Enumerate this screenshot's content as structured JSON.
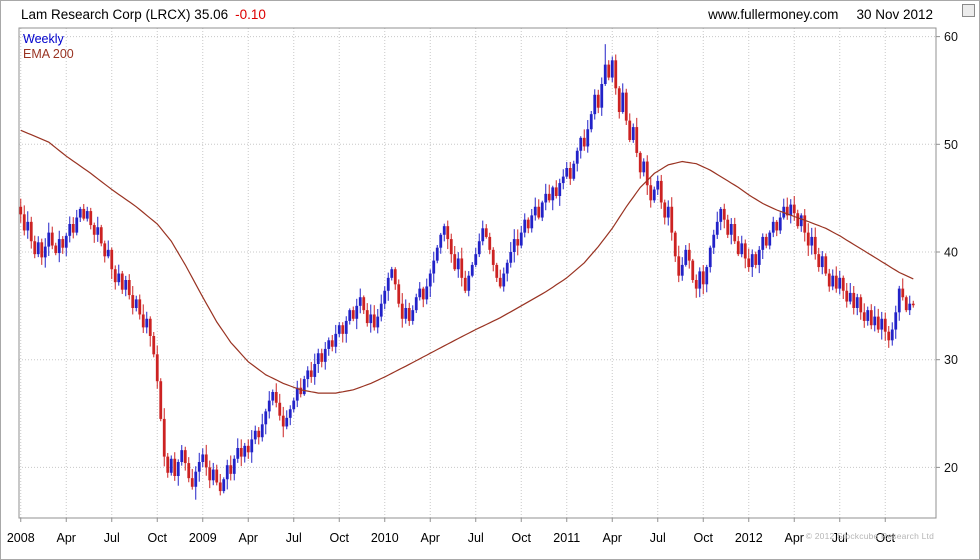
{
  "header": {
    "title": "Lam Research Corp (LRCX) 35.06",
    "change": "-0.10",
    "site": "www.fullermoney.com",
    "date": "30 Nov 2012"
  },
  "legend": {
    "series": "Weekly",
    "overlay": "EMA 200"
  },
  "footer": {
    "copyright": "© 2012 Stockcube Research Ltd"
  },
  "colors": {
    "up": "#2222c8",
    "down": "#cc2222",
    "ema": "#993322",
    "grid": "#c8c8c8",
    "frame": "#909090",
    "tick_text": "#111111",
    "change": "#dd0000",
    "legend_series": "#0000cc",
    "legend_ema": "#993322",
    "copyright": "#b5b5b5"
  },
  "chart_data": {
    "type": "candlestick",
    "period": "weekly",
    "title": "Lam Research Corp (LRCX) 35.06 -0.10",
    "xlabel": "",
    "ylabel": "",
    "grid": true,
    "legend_position": "top-left",
    "legend_entries": [
      "Weekly",
      "EMA 200"
    ],
    "ylim": [
      15.3,
      60.8
    ],
    "yticks": [
      20,
      30,
      40,
      50,
      60
    ],
    "xlim_weeks": [
      0,
      262
    ],
    "x_labels": [
      {
        "week": 0,
        "label": "2008",
        "year": true
      },
      {
        "week": 13,
        "label": "Apr",
        "year": false
      },
      {
        "week": 26,
        "label": "Jul",
        "year": false
      },
      {
        "week": 39,
        "label": "Oct",
        "year": false
      },
      {
        "week": 52,
        "label": "2009",
        "year": true
      },
      {
        "week": 65,
        "label": "Apr",
        "year": false
      },
      {
        "week": 78,
        "label": "Jul",
        "year": false
      },
      {
        "week": 91,
        "label": "Oct",
        "year": false
      },
      {
        "week": 104,
        "label": "2010",
        "year": true
      },
      {
        "week": 117,
        "label": "Apr",
        "year": false
      },
      {
        "week": 130,
        "label": "Jul",
        "year": false
      },
      {
        "week": 143,
        "label": "Oct",
        "year": false
      },
      {
        "week": 156,
        "label": "2011",
        "year": true
      },
      {
        "week": 169,
        "label": "Apr",
        "year": false
      },
      {
        "week": 182,
        "label": "Jul",
        "year": false
      },
      {
        "week": 195,
        "label": "Oct",
        "year": false
      },
      {
        "week": 208,
        "label": "2012",
        "year": true
      },
      {
        "week": 221,
        "label": "Apr",
        "year": false
      },
      {
        "week": 234,
        "label": "Jul",
        "year": false
      },
      {
        "week": 247,
        "label": "Oct",
        "year": false
      }
    ],
    "first_open": 44.2,
    "closes": [
      43.5,
      42.0,
      42.8,
      41.0,
      39.8,
      40.9,
      39.5,
      40.5,
      41.8,
      40.6,
      39.9,
      41.2,
      40.4,
      41.5,
      42.6,
      41.8,
      43.2,
      44.0,
      43.1,
      43.8,
      42.5,
      41.6,
      42.3,
      40.8,
      39.6,
      40.2,
      38.4,
      37.2,
      38.0,
      36.5,
      37.4,
      36.0,
      34.8,
      35.6,
      34.2,
      33.0,
      33.8,
      32.2,
      30.5,
      28.0,
      24.5,
      21.0,
      19.5,
      20.8,
      19.2,
      20.5,
      21.6,
      20.4,
      19.0,
      18.2,
      19.6,
      20.5,
      21.2,
      20.0,
      18.8,
      19.8,
      18.6,
      17.8,
      18.9,
      20.2,
      19.4,
      20.8,
      21.8,
      21.0,
      22.0,
      21.4,
      22.6,
      23.4,
      22.8,
      24.0,
      25.2,
      26.2,
      27.0,
      26.0,
      24.8,
      23.8,
      24.6,
      25.4,
      26.2,
      27.4,
      26.8,
      28.2,
      29.0,
      28.4,
      29.6,
      30.6,
      29.8,
      31.0,
      31.8,
      31.2,
      32.4,
      33.2,
      32.4,
      33.6,
      34.6,
      33.8,
      35.0,
      35.8,
      34.6,
      33.4,
      34.2,
      33.0,
      34.0,
      35.2,
      36.4,
      37.6,
      38.4,
      37.0,
      35.2,
      33.8,
      34.8,
      33.6,
      34.6,
      35.8,
      36.6,
      35.6,
      36.8,
      38.0,
      39.2,
      40.4,
      41.6,
      42.4,
      41.2,
      39.8,
      38.4,
      39.4,
      37.6,
      36.4,
      37.8,
      38.8,
      39.8,
      41.0,
      42.2,
      41.4,
      40.2,
      38.8,
      37.6,
      36.8,
      38.0,
      39.0,
      40.0,
      41.2,
      40.6,
      41.8,
      43.0,
      42.2,
      43.4,
      44.2,
      43.2,
      44.6,
      45.4,
      44.8,
      46.0,
      45.2,
      46.4,
      47.0,
      47.8,
      46.8,
      48.2,
      49.4,
      50.6,
      49.8,
      51.4,
      52.8,
      54.6,
      53.4,
      55.6,
      57.4,
      56.2,
      57.8,
      55.2,
      53.0,
      54.8,
      52.2,
      50.4,
      51.6,
      49.2,
      47.4,
      48.4,
      46.2,
      44.8,
      45.8,
      46.6,
      44.6,
      43.2,
      44.2,
      41.8,
      39.6,
      37.8,
      38.8,
      40.2,
      39.2,
      37.4,
      36.6,
      38.2,
      37.0,
      38.6,
      40.4,
      41.6,
      42.8,
      44.0,
      43.0,
      41.6,
      42.6,
      41.0,
      39.8,
      40.8,
      39.4,
      38.6,
      39.8,
      38.8,
      40.2,
      41.4,
      40.6,
      41.8,
      42.8,
      42.0,
      43.2,
      44.2,
      43.4,
      44.4,
      43.6,
      42.4,
      43.4,
      41.8,
      40.6,
      41.4,
      39.8,
      38.6,
      39.6,
      38.0,
      36.8,
      37.8,
      36.6,
      37.6,
      36.4,
      35.4,
      36.2,
      34.8,
      35.8,
      34.4,
      33.6,
      34.6,
      33.2,
      34.0,
      32.8,
      33.8,
      32.6,
      31.8,
      32.8,
      34.4,
      36.6,
      35.8,
      34.6,
      35.2,
      35.06
    ],
    "wick_overrides": {
      "50": {
        "low": 17.0
      },
      "57": {
        "low": 17.4
      },
      "167": {
        "high": 59.3
      },
      "248": {
        "low": 31.1
      }
    },
    "ema200_anchors": [
      [
        0,
        51.3
      ],
      [
        8,
        50.2
      ],
      [
        13,
        48.9
      ],
      [
        20,
        47.3
      ],
      [
        26,
        45.8
      ],
      [
        33,
        44.2
      ],
      [
        39,
        42.6
      ],
      [
        43,
        41.0
      ],
      [
        47,
        38.8
      ],
      [
        52,
        35.8
      ],
      [
        56,
        33.5
      ],
      [
        60,
        31.6
      ],
      [
        65,
        29.8
      ],
      [
        70,
        28.6
      ],
      [
        75,
        27.8
      ],
      [
        80,
        27.2
      ],
      [
        85,
        26.9
      ],
      [
        90,
        26.9
      ],
      [
        95,
        27.2
      ],
      [
        100,
        27.8
      ],
      [
        104,
        28.4
      ],
      [
        110,
        29.4
      ],
      [
        117,
        30.6
      ],
      [
        124,
        31.8
      ],
      [
        130,
        32.8
      ],
      [
        137,
        33.9
      ],
      [
        143,
        35.0
      ],
      [
        150,
        36.3
      ],
      [
        156,
        37.6
      ],
      [
        161,
        39.0
      ],
      [
        165,
        40.5
      ],
      [
        169,
        42.2
      ],
      [
        173,
        44.2
      ],
      [
        177,
        46.0
      ],
      [
        181,
        47.3
      ],
      [
        185,
        48.1
      ],
      [
        189,
        48.4
      ],
      [
        193,
        48.2
      ],
      [
        197,
        47.6
      ],
      [
        201,
        46.8
      ],
      [
        205,
        46.0
      ],
      [
        208,
        45.3
      ],
      [
        212,
        44.5
      ],
      [
        216,
        43.9
      ],
      [
        221,
        43.3
      ],
      [
        226,
        42.7
      ],
      [
        230,
        42.2
      ],
      [
        234,
        41.5
      ],
      [
        238,
        40.7
      ],
      [
        242,
        39.9
      ],
      [
        247,
        38.9
      ],
      [
        251,
        38.1
      ],
      [
        255,
        37.5
      ]
    ]
  }
}
